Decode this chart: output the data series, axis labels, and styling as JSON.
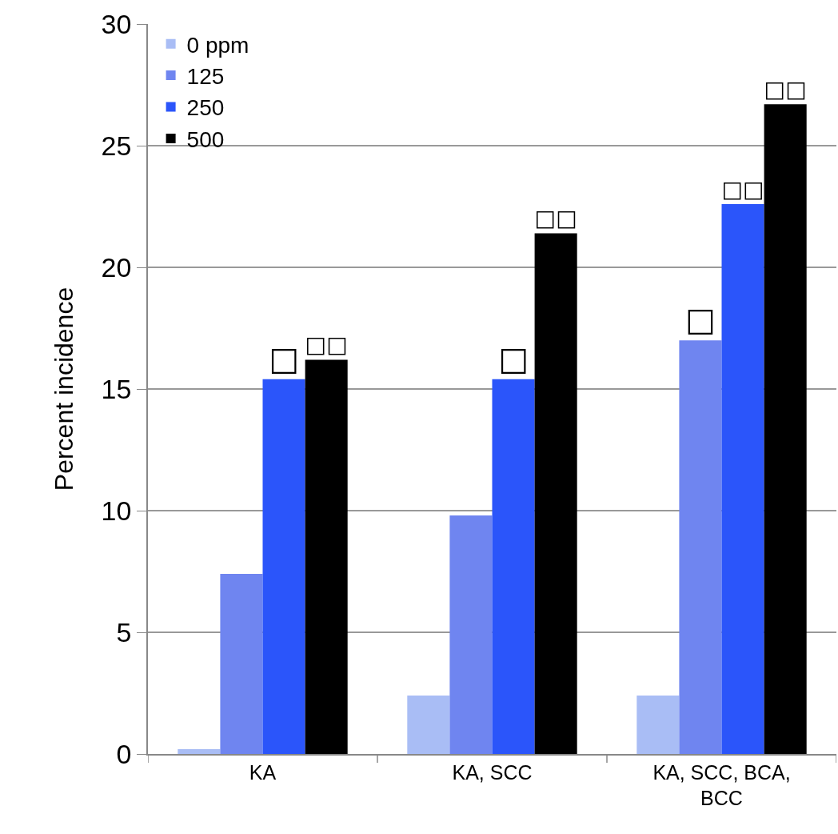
{
  "chart_data": {
    "type": "bar",
    "ylabel": "Percent incidence",
    "categories": [
      "KA",
      "KA, SCC",
      "KA, SCC, BCA, BCC"
    ],
    "series": [
      {
        "name": "0 ppm",
        "color": "#a9bdf5",
        "values": [
          0.2,
          2.4,
          2.4
        ]
      },
      {
        "name": "125",
        "color": "#6f85f0",
        "values": [
          7.4,
          9.8,
          17.0
        ],
        "value_labels": [
          null,
          null,
          "□"
        ]
      },
      {
        "name": "250",
        "color": "#2b55fa",
        "values": [
          15.4,
          15.4,
          22.6
        ],
        "value_labels": [
          "□",
          "□",
          "□□"
        ]
      },
      {
        "name": "500",
        "color": "#000000",
        "values": [
          16.2,
          21.4,
          26.7
        ],
        "value_labels": [
          "□□",
          "□□",
          "□□"
        ]
      }
    ],
    "ylim": [
      0,
      30
    ],
    "yticks": [
      0,
      5,
      10,
      15,
      20,
      25,
      30
    ],
    "grid": "y",
    "legend": "top left"
  }
}
